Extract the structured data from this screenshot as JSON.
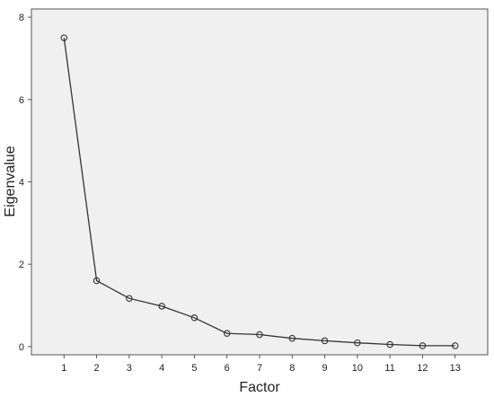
{
  "chart_data": {
    "type": "line",
    "title": "",
    "xlabel": "Factor",
    "ylabel": "Eigenvalue",
    "x": [
      1,
      2,
      3,
      4,
      5,
      6,
      7,
      8,
      9,
      10,
      11,
      12,
      13
    ],
    "x_tick_labels": [
      "1",
      "2",
      "3",
      "4",
      "5",
      "6",
      "7",
      "8",
      "9",
      "10",
      "11",
      "12",
      "13"
    ],
    "series": [
      {
        "values": [
          7.5,
          1.6,
          1.17,
          0.98,
          0.7,
          0.32,
          0.29,
          0.2,
          0.14,
          0.09,
          0.05,
          0.02,
          0.02
        ]
      }
    ],
    "xlim": [
      0,
      14
    ],
    "ylim": [
      -0.2,
      8.2
    ],
    "y_ticks": [
      0,
      2,
      4,
      6,
      8
    ],
    "y_tick_labels": [
      "0",
      "2",
      "4",
      "6",
      "8"
    ],
    "grid": false,
    "legend": "none",
    "colors": {
      "plot_background": "#f0f0f0",
      "line": "#333333",
      "marker_edge": "#333333",
      "axis": "#555555"
    }
  }
}
